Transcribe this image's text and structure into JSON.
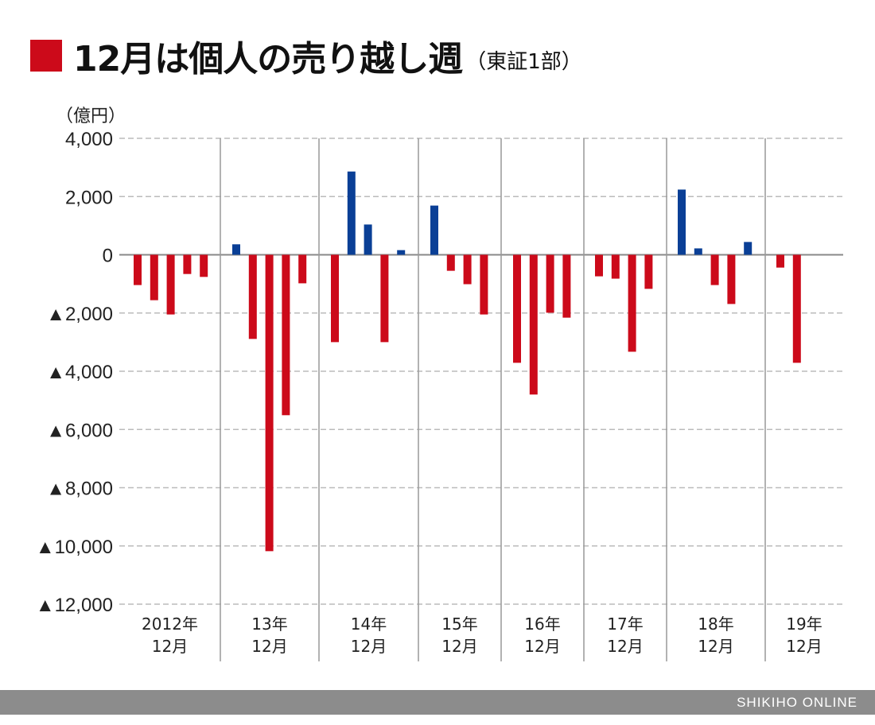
{
  "title": {
    "main": "12月は個人の売り越し週",
    "sub": "（東証1部）"
  },
  "footer": "SHIKIHO ONLINE",
  "colors": {
    "negative": "#cc0a1a",
    "positive": "#0a3f96",
    "title_marker": "#cc0a1a",
    "footer_bg": "#8c8c8c"
  },
  "chart_data": {
    "type": "bar",
    "unit_label": "（億円）",
    "ylim": [
      -12000,
      4000
    ],
    "yticks": [
      4000,
      2000,
      0,
      -2000,
      -4000,
      -6000,
      -8000,
      -10000,
      -12000
    ],
    "ytick_labels": [
      "4,000",
      "2,000",
      "0",
      "▲2,000",
      "▲4,000",
      "▲6,000",
      "▲8,000",
      "▲10,000",
      "▲12,000"
    ],
    "grid": true,
    "groups": [
      {
        "label": [
          "2012年",
          "12月"
        ],
        "values": [
          -1040,
          -1560,
          -2050,
          -660,
          -760
        ]
      },
      {
        "label": [
          "13年",
          "12月"
        ],
        "values": [
          360,
          -2890,
          -10180,
          -5510,
          -980
        ]
      },
      {
        "label": [
          "14年",
          "12月"
        ],
        "values": [
          -3000,
          2860,
          1040,
          -3000,
          160
        ]
      },
      {
        "label": [
          "15年",
          "12月"
        ],
        "values": [
          1690,
          -550,
          -1010,
          -2050
        ]
      },
      {
        "label": [
          "16年",
          "12月"
        ],
        "values": [
          -3710,
          -4800,
          -1990,
          -2160
        ]
      },
      {
        "label": [
          "17年",
          "12月"
        ],
        "values": [
          -740,
          -820,
          -3330,
          -1170
        ]
      },
      {
        "label": [
          "18年",
          "12月"
        ],
        "values": [
          2240,
          220,
          -1040,
          -1690,
          440
        ]
      },
      {
        "label": [
          "19年",
          "12月"
        ],
        "values": [
          -440,
          -3710
        ]
      }
    ]
  }
}
